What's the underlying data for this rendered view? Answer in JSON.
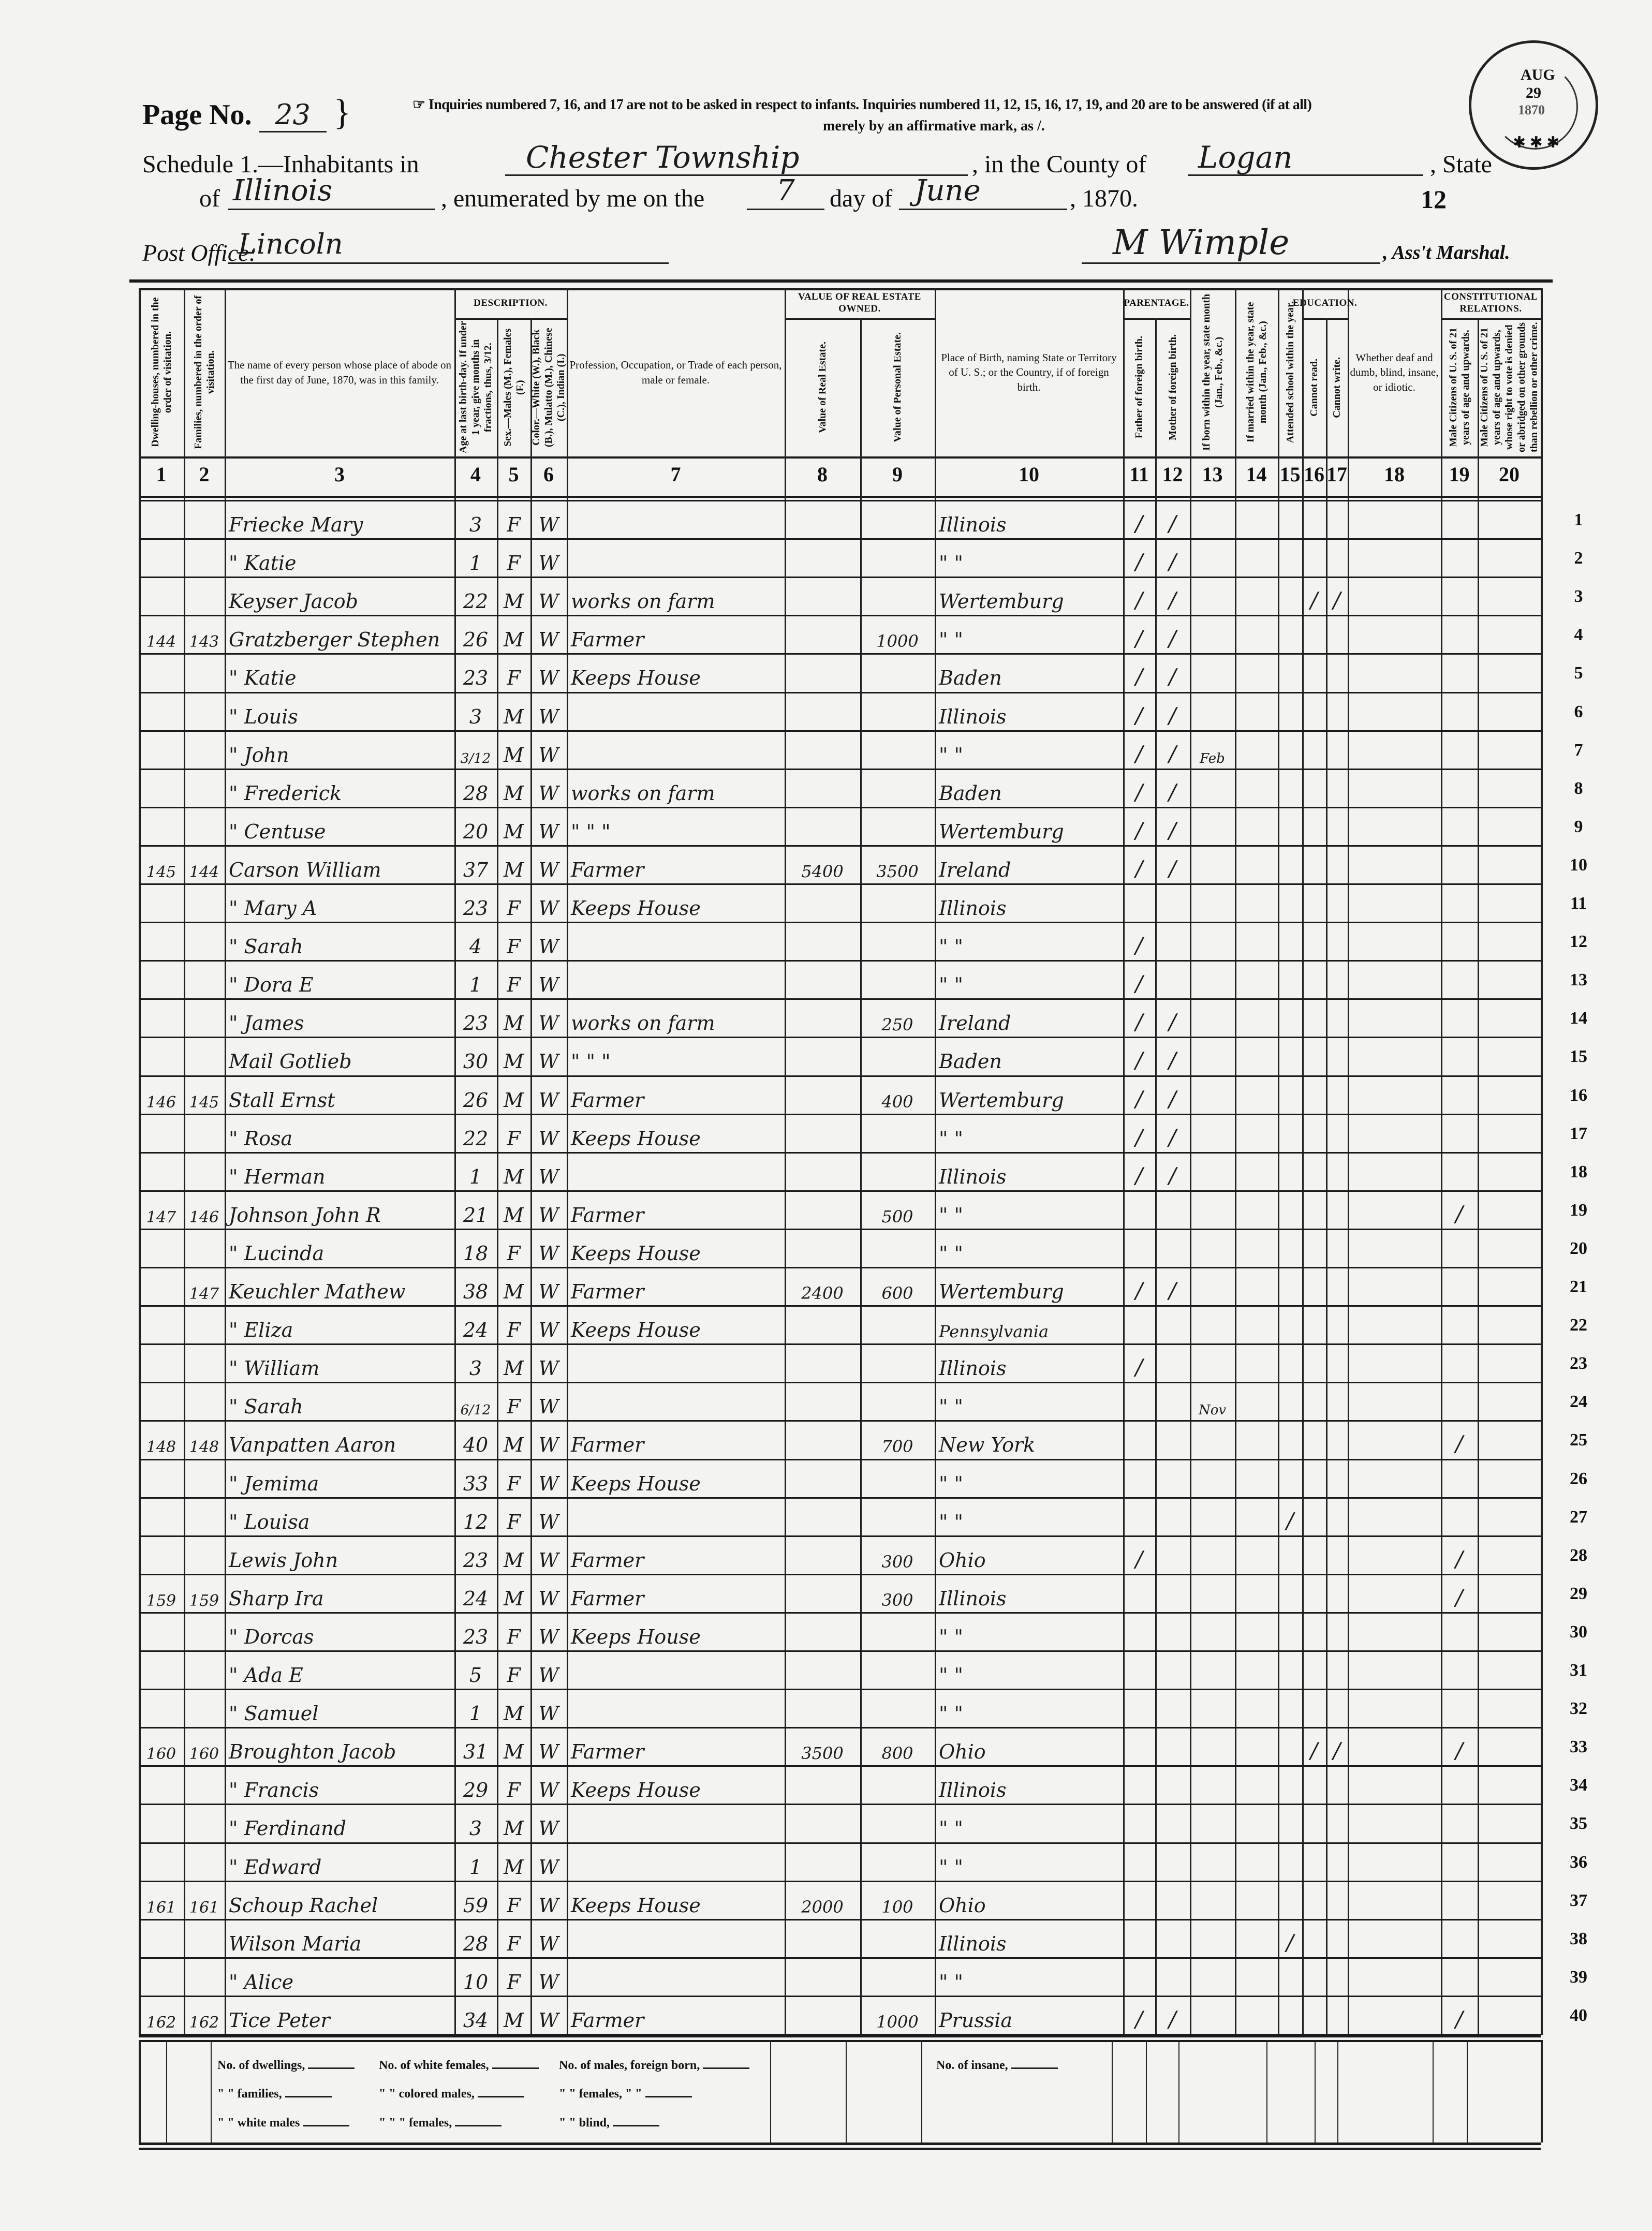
{
  "header": {
    "page_label": "Page No.",
    "page_number": "23",
    "notice": "☞ Inquiries numbered 7, 16, and 17 are not to be asked in respect to infants.  Inquiries numbered 11, 12, 15, 16, 17, 19, and 20 are to be answered (if at all)",
    "notice_line2": "merely by an affirmative mark, as /.",
    "schedule_label": "Schedule 1.—Inhabitants in",
    "township": "Chester Township",
    "county_label": ", in the County of",
    "county": "Logan",
    "state_label": ", State",
    "of_label": "of",
    "state": "Illinois",
    "enumerated_label": ", enumerated by me on the",
    "day": "7",
    "day_of_label": "day of",
    "month": "June",
    "year_label": ", 1870.",
    "sheet_number": "12",
    "post_office_label": "Post Office:",
    "post_office": "Lincoln",
    "marshal_signature": "M Wimple",
    "marshal_label": ", Ass't Marshal.",
    "stamp": {
      "month": "AUG",
      "day": "29",
      "year": "1870"
    }
  },
  "column_groups": {
    "description": "Description.",
    "value_estate": "Value of Real Estate owned.",
    "parentage": "Parentage.",
    "education": "Education.",
    "constitutional": "Constitutional Relations."
  },
  "columns": [
    {
      "num": "1",
      "label": "Dwelling-houses, numbered in the order of visitation."
    },
    {
      "num": "2",
      "label": "Families, numbered in the order of visitation."
    },
    {
      "num": "3",
      "label": "The name of every person whose place of abode on the first day of June, 1870, was in this family."
    },
    {
      "num": "4",
      "label": "Age at last birth-day. If under 1 year, give months in fractions, thus, 3/12."
    },
    {
      "num": "5",
      "label": "Sex.—Males (M.), Females (F.)"
    },
    {
      "num": "6",
      "label": "Color.—White (W.), Black (B.), Mulatto (M.), Chinese (C.), Indian (I.)"
    },
    {
      "num": "7",
      "label": "Profession, Occupation, or Trade of each person, male or female."
    },
    {
      "num": "8",
      "label": "Value of Real Estate."
    },
    {
      "num": "9",
      "label": "Value of Personal Estate."
    },
    {
      "num": "10",
      "label": "Place of Birth, naming State or Territory of U. S.; or the Country, if of foreign birth."
    },
    {
      "num": "11",
      "label": "Father of foreign birth."
    },
    {
      "num": "12",
      "label": "Mother of foreign birth."
    },
    {
      "num": "13",
      "label": "If born within the year, state month (Jan., Feb., &c.)"
    },
    {
      "num": "14",
      "label": "If married within the year, state month (Jan., Feb., &c.)"
    },
    {
      "num": "15",
      "label": "Attended school within the year."
    },
    {
      "num": "16",
      "label": "Cannot read."
    },
    {
      "num": "17",
      "label": "Cannot write."
    },
    {
      "num": "18",
      "label": "Whether deaf and dumb, blind, insane, or idiotic."
    },
    {
      "num": "19",
      "label": "Male Citizens of U. S. of 21 years of age and upwards."
    },
    {
      "num": "20",
      "label": "Male Citizens of U. S. of 21 years of age and upwards, whose right to vote is denied or abridged on other grounds than rebellion or other crime."
    }
  ],
  "rows": [
    {
      "line": "1",
      "cells": [
        "",
        "",
        "Friecke Mary",
        "3",
        "F",
        "W",
        "",
        "",
        "",
        "Illinois",
        "/",
        "/",
        "",
        "",
        "",
        "",
        "",
        "",
        "",
        ""
      ]
    },
    {
      "line": "2",
      "cells": [
        "",
        "",
        "\" Katie",
        "1",
        "F",
        "W",
        "",
        "",
        "",
        "\"   \"",
        "/",
        "/",
        "",
        "",
        "",
        "",
        "",
        "",
        "",
        ""
      ]
    },
    {
      "line": "3",
      "cells": [
        "",
        "",
        "Keyser Jacob",
        "22",
        "M",
        "W",
        "works on farm",
        "",
        "",
        "Wertemburg",
        "/",
        "/",
        "",
        "",
        "",
        "/",
        "/",
        "",
        "",
        ""
      ]
    },
    {
      "line": "4",
      "cells": [
        "144",
        "143",
        "Gratzberger Stephen",
        "26",
        "M",
        "W",
        "Farmer",
        "",
        "1000",
        "\"   \"",
        "/",
        "/",
        "",
        "",
        "",
        "",
        "",
        "",
        "",
        ""
      ]
    },
    {
      "line": "5",
      "cells": [
        "",
        "",
        "\" Katie",
        "23",
        "F",
        "W",
        "Keeps House",
        "",
        "",
        "Baden",
        "/",
        "/",
        "",
        "",
        "",
        "",
        "",
        "",
        "",
        ""
      ]
    },
    {
      "line": "6",
      "cells": [
        "",
        "",
        "\" Louis",
        "3",
        "M",
        "W",
        "",
        "",
        "",
        "Illinois",
        "/",
        "/",
        "",
        "",
        "",
        "",
        "",
        "",
        "",
        ""
      ]
    },
    {
      "line": "7",
      "cells": [
        "",
        "",
        "\" John",
        "3/12",
        "M",
        "W",
        "",
        "",
        "",
        "\"   \"",
        "/",
        "/",
        "Feb",
        "",
        "",
        "",
        "",
        "",
        "",
        ""
      ]
    },
    {
      "line": "8",
      "cells": [
        "",
        "",
        "\" Frederick",
        "28",
        "M",
        "W",
        "works on farm",
        "",
        "",
        "Baden",
        "/",
        "/",
        "",
        "",
        "",
        "",
        "",
        "",
        "",
        ""
      ]
    },
    {
      "line": "9",
      "cells": [
        "",
        "",
        "\" Centuse",
        "20",
        "M",
        "W",
        "\"  \"  \"",
        "",
        "",
        "Wertemburg",
        "/",
        "/",
        "",
        "",
        "",
        "",
        "",
        "",
        "",
        ""
      ]
    },
    {
      "line": "10",
      "cells": [
        "145",
        "144",
        "Carson William",
        "37",
        "M",
        "W",
        "Farmer",
        "5400",
        "3500",
        "Ireland",
        "/",
        "/",
        "",
        "",
        "",
        "",
        "",
        "",
        "",
        ""
      ]
    },
    {
      "line": "11",
      "cells": [
        "",
        "",
        "\" Mary A",
        "23",
        "F",
        "W",
        "Keeps House",
        "",
        "",
        "Illinois",
        "",
        "",
        "",
        "",
        "",
        "",
        "",
        "",
        "",
        ""
      ]
    },
    {
      "line": "12",
      "cells": [
        "",
        "",
        "\" Sarah",
        "4",
        "F",
        "W",
        "",
        "",
        "",
        "\"   \"",
        "/",
        "",
        "",
        "",
        "",
        "",
        "",
        "",
        "",
        ""
      ]
    },
    {
      "line": "13",
      "cells": [
        "",
        "",
        "\" Dora E",
        "1",
        "F",
        "W",
        "",
        "",
        "",
        "\"   \"",
        "/",
        "",
        "",
        "",
        "",
        "",
        "",
        "",
        "",
        ""
      ]
    },
    {
      "line": "14",
      "cells": [
        "",
        "",
        "\" James",
        "23",
        "M",
        "W",
        "works on farm",
        "",
        "250",
        "Ireland",
        "/",
        "/",
        "",
        "",
        "",
        "",
        "",
        "",
        "",
        ""
      ]
    },
    {
      "line": "15",
      "cells": [
        "",
        "",
        "Mail Gotlieb",
        "30",
        "M",
        "W",
        "\"  \"  \"",
        "",
        "",
        "Baden",
        "/",
        "/",
        "",
        "",
        "",
        "",
        "",
        "",
        "",
        ""
      ]
    },
    {
      "line": "16",
      "cells": [
        "146",
        "145",
        "Stall Ernst",
        "26",
        "M",
        "W",
        "Farmer",
        "",
        "400",
        "Wertemburg",
        "/",
        "/",
        "",
        "",
        "",
        "",
        "",
        "",
        "",
        ""
      ]
    },
    {
      "line": "17",
      "cells": [
        "",
        "",
        "\" Rosa",
        "22",
        "F",
        "W",
        "Keeps House",
        "",
        "",
        "\"   \"",
        "/",
        "/",
        "",
        "",
        "",
        "",
        "",
        "",
        "",
        ""
      ]
    },
    {
      "line": "18",
      "cells": [
        "",
        "",
        "\" Herman",
        "1",
        "M",
        "W",
        "",
        "",
        "",
        "Illinois",
        "/",
        "/",
        "",
        "",
        "",
        "",
        "",
        "",
        "",
        ""
      ]
    },
    {
      "line": "19",
      "cells": [
        "147",
        "146",
        "Johnson John R",
        "21",
        "M",
        "W",
        "Farmer",
        "",
        "500",
        "\"   \"",
        "",
        "",
        "",
        "",
        "",
        "",
        "",
        "",
        "/",
        ""
      ]
    },
    {
      "line": "20",
      "cells": [
        "",
        "",
        "\" Lucinda",
        "18",
        "F",
        "W",
        "Keeps House",
        "",
        "",
        "\"   \"",
        "",
        "",
        "",
        "",
        "",
        "",
        "",
        "",
        "",
        ""
      ]
    },
    {
      "line": "21",
      "cells": [
        "",
        "147",
        "Keuchler Mathew",
        "38",
        "M",
        "W",
        "Farmer",
        "2400",
        "600",
        "Wertemburg",
        "/",
        "/",
        "",
        "",
        "",
        "",
        "",
        "",
        "",
        ""
      ]
    },
    {
      "line": "22",
      "cells": [
        "",
        "",
        "\" Eliza",
        "24",
        "F",
        "W",
        "Keeps House",
        "",
        "",
        "Pennsylvania",
        "",
        "",
        "",
        "",
        "",
        "",
        "",
        "",
        "",
        ""
      ]
    },
    {
      "line": "23",
      "cells": [
        "",
        "",
        "\" William",
        "3",
        "M",
        "W",
        "",
        "",
        "",
        "Illinois",
        "/",
        "",
        "",
        "",
        "",
        "",
        "",
        "",
        "",
        ""
      ]
    },
    {
      "line": "24",
      "cells": [
        "",
        "",
        "\" Sarah",
        "6/12",
        "F",
        "W",
        "",
        "",
        "",
        "\"   \"",
        "",
        "",
        "Nov",
        "",
        "",
        "",
        "",
        "",
        "",
        ""
      ]
    },
    {
      "line": "25",
      "cells": [
        "148",
        "148",
        "Vanpatten Aaron",
        "40",
        "M",
        "W",
        "Farmer",
        "",
        "700",
        "New York",
        "",
        "",
        "",
        "",
        "",
        "",
        "",
        "",
        "/",
        ""
      ]
    },
    {
      "line": "26",
      "cells": [
        "",
        "",
        "\" Jemima",
        "33",
        "F",
        "W",
        "Keeps House",
        "",
        "",
        "\"   \"",
        "",
        "",
        "",
        "",
        "",
        "",
        "",
        "",
        "",
        ""
      ]
    },
    {
      "line": "27",
      "cells": [
        "",
        "",
        "\" Louisa",
        "12",
        "F",
        "W",
        "",
        "",
        "",
        "\"   \"",
        "",
        "",
        "",
        "",
        "/",
        "",
        "",
        "",
        "",
        ""
      ]
    },
    {
      "line": "28",
      "cells": [
        "",
        "",
        "Lewis John",
        "23",
        "M",
        "W",
        "Farmer",
        "",
        "300",
        "Ohio",
        "/",
        "",
        "",
        "",
        "",
        "",
        "",
        "",
        "/",
        ""
      ]
    },
    {
      "line": "29",
      "cells": [
        "159",
        "159",
        "Sharp Ira",
        "24",
        "M",
        "W",
        "Farmer",
        "",
        "300",
        "Illinois",
        "",
        "",
        "",
        "",
        "",
        "",
        "",
        "",
        "/",
        ""
      ]
    },
    {
      "line": "30",
      "cells": [
        "",
        "",
        "\" Dorcas",
        "23",
        "F",
        "W",
        "Keeps House",
        "",
        "",
        "\"   \"",
        "",
        "",
        "",
        "",
        "",
        "",
        "",
        "",
        "",
        ""
      ]
    },
    {
      "line": "31",
      "cells": [
        "",
        "",
        "\" Ada E",
        "5",
        "F",
        "W",
        "",
        "",
        "",
        "\"   \"",
        "",
        "",
        "",
        "",
        "",
        "",
        "",
        "",
        "",
        ""
      ]
    },
    {
      "line": "32",
      "cells": [
        "",
        "",
        "\" Samuel",
        "1",
        "M",
        "W",
        "",
        "",
        "",
        "\"   \"",
        "",
        "",
        "",
        "",
        "",
        "",
        "",
        "",
        "",
        ""
      ]
    },
    {
      "line": "33",
      "cells": [
        "160",
        "160",
        "Broughton Jacob",
        "31",
        "M",
        "W",
        "Farmer",
        "3500",
        "800",
        "Ohio",
        "",
        "",
        "",
        "",
        "",
        "/",
        "/",
        "",
        "/",
        ""
      ]
    },
    {
      "line": "34",
      "cells": [
        "",
        "",
        "\" Francis",
        "29",
        "F",
        "W",
        "Keeps House",
        "",
        "",
        "Illinois",
        "",
        "",
        "",
        "",
        "",
        "",
        "",
        "",
        "",
        ""
      ]
    },
    {
      "line": "35",
      "cells": [
        "",
        "",
        "\" Ferdinand",
        "3",
        "M",
        "W",
        "",
        "",
        "",
        "\"   \"",
        "",
        "",
        "",
        "",
        "",
        "",
        "",
        "",
        "",
        ""
      ]
    },
    {
      "line": "36",
      "cells": [
        "",
        "",
        "\" Edward",
        "1",
        "M",
        "W",
        "",
        "",
        "",
        "\"   \"",
        "",
        "",
        "",
        "",
        "",
        "",
        "",
        "",
        "",
        ""
      ]
    },
    {
      "line": "37",
      "cells": [
        "161",
        "161",
        "Schoup Rachel",
        "59",
        "F",
        "W",
        "Keeps House",
        "2000",
        "100",
        "Ohio",
        "",
        "",
        "",
        "",
        "",
        "",
        "",
        "",
        "",
        ""
      ]
    },
    {
      "line": "38",
      "cells": [
        "",
        "",
        "Wilson Maria",
        "28",
        "F",
        "W",
        "",
        "",
        "",
        "Illinois",
        "",
        "",
        "",
        "",
        "/",
        "",
        "",
        "",
        "",
        ""
      ]
    },
    {
      "line": "39",
      "cells": [
        "",
        "",
        "\" Alice",
        "10",
        "F",
        "W",
        "",
        "",
        "",
        "\"   \"",
        "",
        "",
        "",
        "",
        "",
        "",
        "",
        "",
        "",
        ""
      ]
    },
    {
      "line": "40",
      "cells": [
        "162",
        "162",
        "Tice Peter",
        "34",
        "M",
        "W",
        "Farmer",
        "",
        "1000",
        "Prussia",
        "/",
        "/",
        "",
        "",
        "",
        "",
        "",
        "",
        "/",
        ""
      ]
    }
  ],
  "footer": {
    "dwellings": "No. of dwellings,",
    "families": "\" \" families,",
    "white_males": "\" \" white males",
    "white_females": "No. of white females,",
    "colored_males": "\" \" colored males,",
    "colored_females": "\" \"   \" females,",
    "males_foreign": "No. of males, foreign born,",
    "females_foreign": "\" \" females,  \"   \"",
    "blind": "\" \" blind,",
    "insane": "No. of insane,"
  }
}
